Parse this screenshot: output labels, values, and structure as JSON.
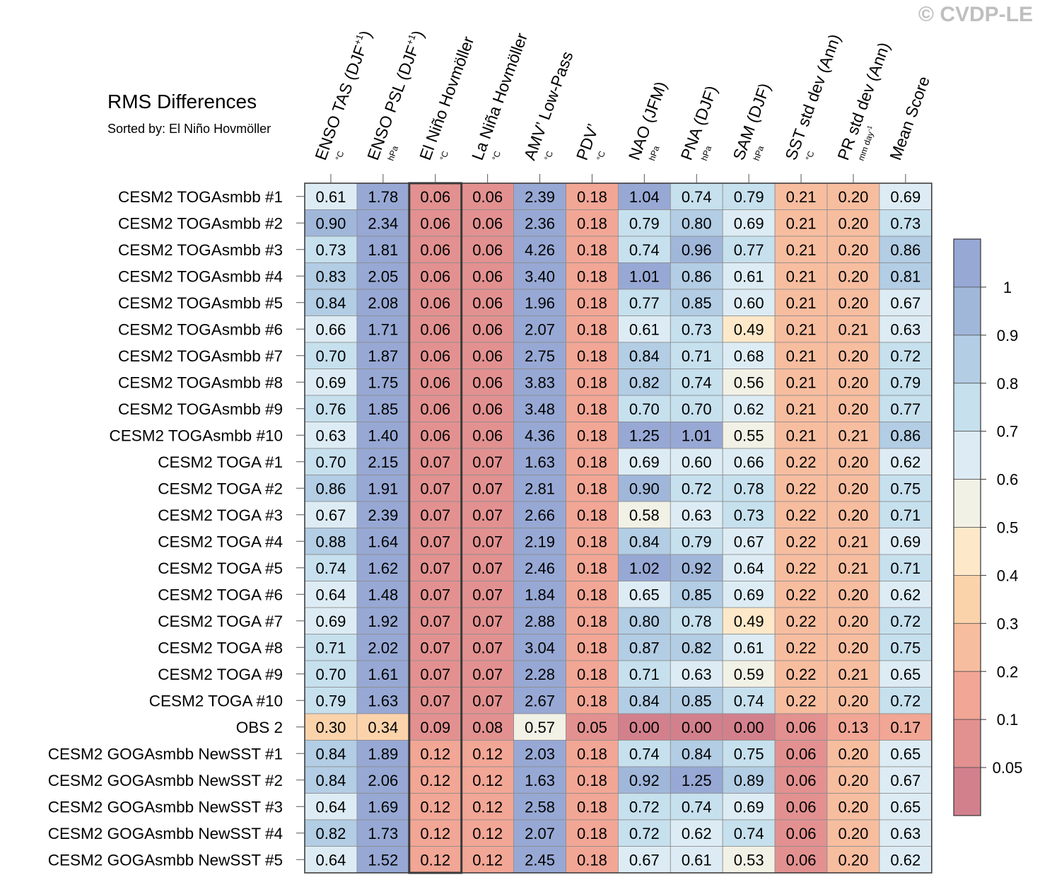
{
  "watermark": "© CVDP-LE",
  "chart_data": {
    "type": "heatmap",
    "title": "RMS Differences",
    "subtitle": "Sorted by: El Niño Hovmöller",
    "columns": [
      {
        "name": "ENSO TAS (DJF",
        "sup": "+1",
        "close": ")",
        "unit": "°C"
      },
      {
        "name": "ENSO PSL (DJF",
        "sup": "+1",
        "close": ")",
        "unit": "hPa"
      },
      {
        "name": "El Niño Hovmöller",
        "sup": "",
        "close": "",
        "unit": "°C"
      },
      {
        "name": "La Niña Hovmöller",
        "sup": "",
        "close": "",
        "unit": "°C"
      },
      {
        "name": "AMV’ Low-Pass",
        "sup": "",
        "close": "",
        "unit": "°C"
      },
      {
        "name": "PDV’",
        "sup": "",
        "close": "",
        "unit": "°C"
      },
      {
        "name": "NAO (JFM)",
        "sup": "",
        "close": "",
        "unit": "hPa"
      },
      {
        "name": "PNA (DJF)",
        "sup": "",
        "close": "",
        "unit": "hPa"
      },
      {
        "name": "SAM (DJF)",
        "sup": "",
        "close": "",
        "unit": "hPa"
      },
      {
        "name": "SST std dev (Ann)",
        "sup": "",
        "close": "",
        "unit": "°C"
      },
      {
        "name": "PR std dev (Ann)",
        "sup": "",
        "close": "",
        "unit": "mm day-1"
      },
      {
        "name": "Mean Score",
        "sup": "",
        "close": "",
        "unit": ""
      }
    ],
    "highlight_column": "El Niño Hovmöller",
    "rows": [
      {
        "label": "CESM2 TOGAsmbb #1",
        "values": [
          "0.61",
          "1.78",
          "0.06",
          "0.06",
          "2.39",
          "0.18",
          "1.04",
          "0.74",
          "0.79",
          "0.21",
          "0.20",
          "0.69"
        ]
      },
      {
        "label": "CESM2 TOGAsmbb #2",
        "values": [
          "0.90",
          "2.34",
          "0.06",
          "0.06",
          "2.36",
          "0.18",
          "0.79",
          "0.80",
          "0.69",
          "0.21",
          "0.20",
          "0.73"
        ]
      },
      {
        "label": "CESM2 TOGAsmbb #3",
        "values": [
          "0.73",
          "1.81",
          "0.06",
          "0.06",
          "4.26",
          "0.18",
          "0.74",
          "0.96",
          "0.77",
          "0.21",
          "0.20",
          "0.86"
        ]
      },
      {
        "label": "CESM2 TOGAsmbb #4",
        "values": [
          "0.83",
          "2.05",
          "0.06",
          "0.06",
          "3.40",
          "0.18",
          "1.01",
          "0.86",
          "0.61",
          "0.21",
          "0.20",
          "0.81"
        ]
      },
      {
        "label": "CESM2 TOGAsmbb #5",
        "values": [
          "0.84",
          "2.08",
          "0.06",
          "0.06",
          "1.96",
          "0.18",
          "0.77",
          "0.85",
          "0.60",
          "0.21",
          "0.20",
          "0.67"
        ]
      },
      {
        "label": "CESM2 TOGAsmbb #6",
        "values": [
          "0.66",
          "1.71",
          "0.06",
          "0.06",
          "2.07",
          "0.18",
          "0.61",
          "0.73",
          "0.49",
          "0.21",
          "0.21",
          "0.63"
        ]
      },
      {
        "label": "CESM2 TOGAsmbb #7",
        "values": [
          "0.70",
          "1.87",
          "0.06",
          "0.06",
          "2.75",
          "0.18",
          "0.84",
          "0.71",
          "0.68",
          "0.21",
          "0.20",
          "0.72"
        ]
      },
      {
        "label": "CESM2 TOGAsmbb #8",
        "values": [
          "0.69",
          "1.75",
          "0.06",
          "0.06",
          "3.83",
          "0.18",
          "0.82",
          "0.74",
          "0.56",
          "0.21",
          "0.20",
          "0.79"
        ]
      },
      {
        "label": "CESM2 TOGAsmbb #9",
        "values": [
          "0.76",
          "1.85",
          "0.06",
          "0.06",
          "3.48",
          "0.18",
          "0.70",
          "0.70",
          "0.62",
          "0.21",
          "0.20",
          "0.77"
        ]
      },
      {
        "label": "CESM2 TOGAsmbb #10",
        "values": [
          "0.63",
          "1.40",
          "0.06",
          "0.06",
          "4.36",
          "0.18",
          "1.25",
          "1.01",
          "0.55",
          "0.21",
          "0.21",
          "0.86"
        ]
      },
      {
        "label": "CESM2 TOGA #1",
        "values": [
          "0.70",
          "2.15",
          "0.07",
          "0.07",
          "1.63",
          "0.18",
          "0.69",
          "0.60",
          "0.66",
          "0.22",
          "0.20",
          "0.62"
        ]
      },
      {
        "label": "CESM2 TOGA #2",
        "values": [
          "0.86",
          "1.91",
          "0.07",
          "0.07",
          "2.81",
          "0.18",
          "0.90",
          "0.72",
          "0.78",
          "0.22",
          "0.20",
          "0.75"
        ]
      },
      {
        "label": "CESM2 TOGA #3",
        "values": [
          "0.67",
          "2.39",
          "0.07",
          "0.07",
          "2.66",
          "0.18",
          "0.58",
          "0.63",
          "0.73",
          "0.22",
          "0.20",
          "0.71"
        ]
      },
      {
        "label": "CESM2 TOGA #4",
        "values": [
          "0.88",
          "1.64",
          "0.07",
          "0.07",
          "2.19",
          "0.18",
          "0.84",
          "0.79",
          "0.67",
          "0.22",
          "0.21",
          "0.69"
        ]
      },
      {
        "label": "CESM2 TOGA #5",
        "values": [
          "0.74",
          "1.62",
          "0.07",
          "0.07",
          "2.46",
          "0.18",
          "1.02",
          "0.92",
          "0.64",
          "0.22",
          "0.21",
          "0.71"
        ]
      },
      {
        "label": "CESM2 TOGA #6",
        "values": [
          "0.64",
          "1.48",
          "0.07",
          "0.07",
          "1.84",
          "0.18",
          "0.65",
          "0.85",
          "0.69",
          "0.22",
          "0.20",
          "0.62"
        ]
      },
      {
        "label": "CESM2 TOGA #7",
        "values": [
          "0.69",
          "1.92",
          "0.07",
          "0.07",
          "2.88",
          "0.18",
          "0.80",
          "0.78",
          "0.49",
          "0.22",
          "0.20",
          "0.72"
        ]
      },
      {
        "label": "CESM2 TOGA #8",
        "values": [
          "0.71",
          "2.02",
          "0.07",
          "0.07",
          "3.04",
          "0.18",
          "0.87",
          "0.82",
          "0.61",
          "0.22",
          "0.20",
          "0.75"
        ]
      },
      {
        "label": "CESM2 TOGA #9",
        "values": [
          "0.70",
          "1.61",
          "0.07",
          "0.07",
          "2.28",
          "0.18",
          "0.71",
          "0.63",
          "0.59",
          "0.22",
          "0.21",
          "0.65"
        ]
      },
      {
        "label": "CESM2 TOGA #10",
        "values": [
          "0.79",
          "1.63",
          "0.07",
          "0.07",
          "2.67",
          "0.18",
          "0.84",
          "0.85",
          "0.74",
          "0.22",
          "0.20",
          "0.72"
        ]
      },
      {
        "label": "OBS 2",
        "values": [
          "0.30",
          "0.34",
          "0.09",
          "0.08",
          "0.57",
          "0.05",
          "0.00",
          "0.00",
          "0.00",
          "0.06",
          "0.13",
          "0.17"
        ]
      },
      {
        "label": "CESM2 GOGAsmbb NewSST #1",
        "values": [
          "0.84",
          "1.89",
          "0.12",
          "0.12",
          "2.03",
          "0.18",
          "0.74",
          "0.84",
          "0.75",
          "0.06",
          "0.20",
          "0.65"
        ]
      },
      {
        "label": "CESM2 GOGAsmbb NewSST #2",
        "values": [
          "0.84",
          "2.06",
          "0.12",
          "0.12",
          "1.63",
          "0.18",
          "0.92",
          "1.25",
          "0.89",
          "0.06",
          "0.20",
          "0.67"
        ]
      },
      {
        "label": "CESM2 GOGAsmbb NewSST #3",
        "values": [
          "0.64",
          "1.69",
          "0.12",
          "0.12",
          "2.58",
          "0.18",
          "0.72",
          "0.74",
          "0.69",
          "0.06",
          "0.20",
          "0.65"
        ]
      },
      {
        "label": "CESM2 GOGAsmbb NewSST #4",
        "values": [
          "0.82",
          "1.73",
          "0.12",
          "0.12",
          "2.07",
          "0.18",
          "0.72",
          "0.62",
          "0.74",
          "0.06",
          "0.20",
          "0.63"
        ]
      },
      {
        "label": "CESM2 GOGAsmbb NewSST #5",
        "values": [
          "0.64",
          "1.52",
          "0.12",
          "0.12",
          "2.45",
          "0.18",
          "0.67",
          "0.61",
          "0.53",
          "0.06",
          "0.20",
          "0.62"
        ]
      }
    ],
    "colorbar": {
      "levels": [
        0.05,
        0.1,
        0.2,
        0.3,
        0.4,
        0.5,
        0.6,
        0.7,
        0.8,
        0.9,
        1
      ],
      "labels": [
        "0.05",
        "0.1",
        "0.2",
        "0.3",
        "0.4",
        "0.5",
        "0.6",
        "0.7",
        "0.8",
        "0.9",
        "1"
      ],
      "colors": [
        "#d3808d",
        "#e29190",
        "#f2a695",
        "#f7bd9f",
        "#fbd3ab",
        "#fde9c9",
        "#f2f1e6",
        "#ddecf4",
        "#c6e0ee",
        "#b2cde4",
        "#a0b7da",
        "#97a8d4"
      ]
    }
  }
}
